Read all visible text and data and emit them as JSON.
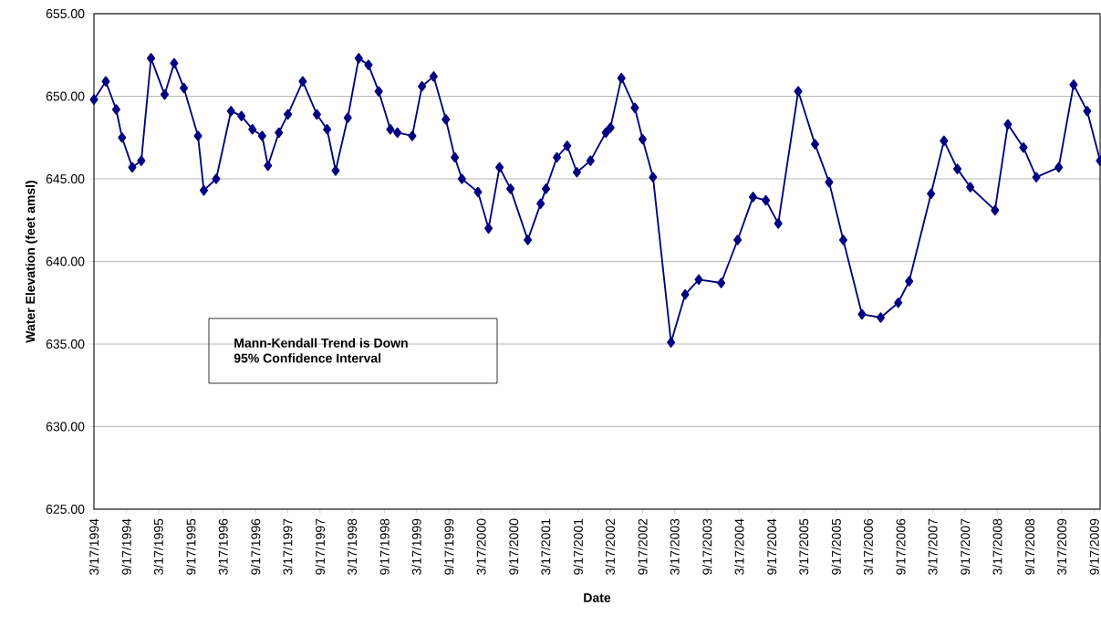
{
  "chart_data": {
    "type": "line",
    "xlabel": "Date",
    "ylabel": "Water Elevation (feet amsl)",
    "annotations": [
      "Mann-Kendall Trend is Down",
      "95% Confidence Interval"
    ],
    "x": [
      "1994-03-17",
      "1994-05-23",
      "1994-07-21",
      "1994-08-23",
      "1994-10-20",
      "1994-12-10",
      "1995-02-03",
      "1995-04-21",
      "1995-06-14",
      "1995-08-08",
      "1995-10-27",
      "1995-11-29",
      "1996-02-07",
      "1996-05-01",
      "1996-06-29",
      "1996-08-30",
      "1996-10-24",
      "1996-11-26",
      "1997-01-27",
      "1997-03-19",
      "1997-06-11",
      "1997-08-30",
      "1997-10-27",
      "1997-12-14",
      "1998-02-21",
      "1998-04-24",
      "1998-06-18",
      "1998-08-15",
      "1998-10-20",
      "1998-11-29",
      "1999-02-21",
      "1999-04-17",
      "1999-06-22",
      "1999-08-30",
      "1999-10-20",
      "1999-11-29",
      "2000-02-28",
      "2000-04-28",
      "2000-06-29",
      "2000-08-30",
      "2000-12-06",
      "2001-02-17",
      "2001-03-19",
      "2001-05-20",
      "2001-07-17",
      "2001-09-10",
      "2001-11-26",
      "2002-02-21",
      "2002-03-19",
      "2002-05-20",
      "2002-08-04",
      "2002-09-17",
      "2002-11-15",
      "2003-02-25",
      "2003-05-16",
      "2003-08-01",
      "2003-12-06",
      "2004-03-08",
      "2004-06-03",
      "2004-08-15",
      "2004-10-24",
      "2005-02-14",
      "2005-05-20",
      "2005-08-08",
      "2005-10-27",
      "2006-02-10",
      "2006-05-27",
      "2006-09-03",
      "2006-11-04",
      "2007-03-08",
      "2007-05-20",
      "2007-08-04",
      "2007-10-16",
      "2008-03-04",
      "2008-05-16",
      "2008-08-12",
      "2008-10-24",
      "2009-02-28",
      "2009-05-23",
      "2009-08-08",
      "2009-10-20"
    ],
    "values": [
      649.8,
      650.9,
      649.2,
      647.5,
      645.7,
      646.1,
      652.3,
      650.1,
      652.0,
      650.5,
      647.6,
      644.3,
      645.0,
      649.1,
      648.8,
      648.0,
      647.6,
      645.8,
      647.8,
      648.9,
      650.9,
      648.9,
      648.0,
      645.5,
      648.7,
      652.3,
      651.9,
      650.3,
      648.0,
      647.8,
      647.6,
      650.6,
      651.2,
      648.6,
      646.3,
      645.0,
      644.2,
      642.0,
      645.7,
      644.4,
      641.3,
      643.5,
      644.4,
      646.3,
      647.0,
      645.4,
      646.1,
      647.8,
      648.1,
      651.1,
      649.3,
      647.4,
      645.1,
      635.1,
      638.0,
      638.9,
      638.7,
      641.3,
      643.9,
      643.7,
      642.3,
      650.3,
      647.1,
      644.8,
      641.3,
      636.8,
      636.6,
      637.5,
      638.8,
      644.1,
      647.3,
      645.6,
      644.5,
      643.1,
      648.3,
      646.9,
      645.1,
      645.7,
      650.7,
      649.1,
      646.1
    ],
    "color": "#000080",
    "marker": "diamond",
    "line_style": "solid",
    "grid": "y",
    "xlim": [
      "1994-03-17",
      "2009-10-20"
    ],
    "ylim": [
      625,
      655
    ],
    "xticks": [
      {
        "value": "1994-03-17",
        "label": "3/17/1994"
      },
      {
        "value": "1994-09-17",
        "label": "9/17/1994"
      },
      {
        "value": "1995-03-17",
        "label": "3/17/1995"
      },
      {
        "value": "1995-09-17",
        "label": "9/17/1995"
      },
      {
        "value": "1996-03-17",
        "label": "3/17/1996"
      },
      {
        "value": "1996-09-17",
        "label": "9/17/1996"
      },
      {
        "value": "1997-03-17",
        "label": "3/17/1997"
      },
      {
        "value": "1997-09-17",
        "label": "9/17/1997"
      },
      {
        "value": "1998-03-17",
        "label": "3/17/1998"
      },
      {
        "value": "1998-09-17",
        "label": "9/17/1998"
      },
      {
        "value": "1999-03-17",
        "label": "3/17/1999"
      },
      {
        "value": "1999-09-17",
        "label": "9/17/1999"
      },
      {
        "value": "2000-03-17",
        "label": "3/17/2000"
      },
      {
        "value": "2000-09-17",
        "label": "9/17/2000"
      },
      {
        "value": "2001-03-17",
        "label": "3/17/2001"
      },
      {
        "value": "2001-09-17",
        "label": "9/17/2001"
      },
      {
        "value": "2002-03-17",
        "label": "3/17/2002"
      },
      {
        "value": "2002-09-17",
        "label": "9/17/2002"
      },
      {
        "value": "2003-03-17",
        "label": "3/17/2003"
      },
      {
        "value": "2003-09-17",
        "label": "9/17/2003"
      },
      {
        "value": "2004-03-17",
        "label": "3/17/2004"
      },
      {
        "value": "2004-09-17",
        "label": "9/17/2004"
      },
      {
        "value": "2005-03-17",
        "label": "3/17/2005"
      },
      {
        "value": "2005-09-17",
        "label": "9/17/2005"
      },
      {
        "value": "2006-03-17",
        "label": "3/17/2006"
      },
      {
        "value": "2006-09-17",
        "label": "9/17/2006"
      },
      {
        "value": "2007-03-17",
        "label": "3/17/2007"
      },
      {
        "value": "2007-09-17",
        "label": "9/17/2007"
      },
      {
        "value": "2008-03-17",
        "label": "3/17/2008"
      },
      {
        "value": "2008-09-17",
        "label": "9/17/2008"
      },
      {
        "value": "2009-03-17",
        "label": "3/17/2009"
      },
      {
        "value": "2009-09-17",
        "label": "9/17/2009"
      }
    ],
    "yticks": [
      {
        "value": 625,
        "label": "625.00"
      },
      {
        "value": 630,
        "label": "630.00"
      },
      {
        "value": 635,
        "label": "635.00"
      },
      {
        "value": 640,
        "label": "640.00"
      },
      {
        "value": 645,
        "label": "645.00"
      },
      {
        "value": 650,
        "label": "650.00"
      },
      {
        "value": 655,
        "label": "655.00"
      }
    ]
  }
}
